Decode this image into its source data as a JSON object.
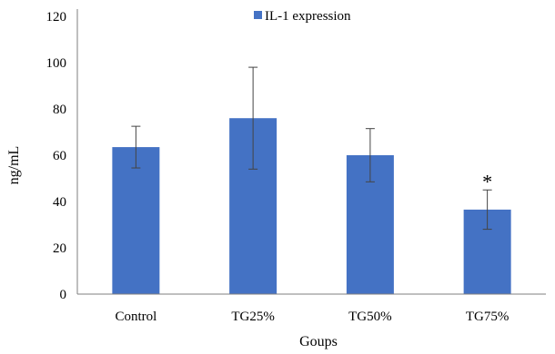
{
  "chart_data": {
    "type": "bar",
    "categories": [
      "Control",
      "TG25%",
      "TG50%",
      "TG75%"
    ],
    "series": [
      {
        "name": "IL-1 expression",
        "values": [
          63.5,
          76,
          60,
          36.5
        ],
        "error": [
          9,
          22,
          11.5,
          8.5
        ]
      }
    ],
    "xlabel": "Goups",
    "ylabel": "ng/mL",
    "ylim": [
      0,
      120
    ],
    "yticks": [
      0,
      20,
      40,
      60,
      80,
      100,
      120
    ],
    "grid": false,
    "legend": "top-center",
    "annotations": [
      {
        "category": "TG75%",
        "text": "*"
      }
    ],
    "colors": {
      "bar": "#4472C4",
      "error_bar": "#444444",
      "axis": "#7f7f7f"
    }
  }
}
